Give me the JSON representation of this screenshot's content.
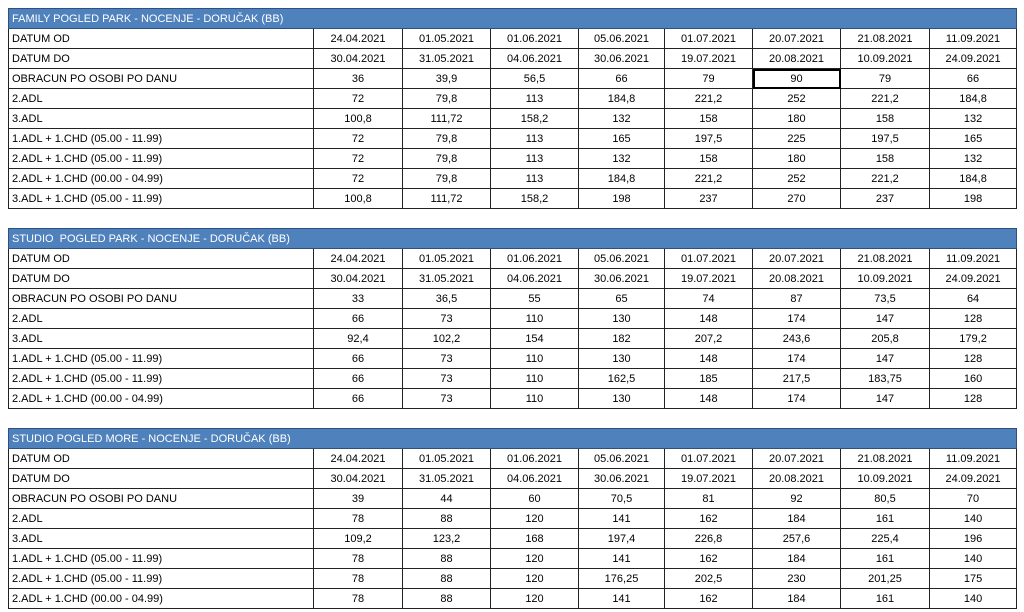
{
  "tables": [
    {
      "title": "FAMILY POGLED PARK - NOCENJE - DORUČAK (BB)",
      "rows": [
        [
          "DATUM OD",
          "24.04.2021",
          "01.05.2021",
          "01.06.2021",
          "05.06.2021",
          "01.07.2021",
          "20.07.2021",
          "21.08.2021",
          "11.09.2021"
        ],
        [
          "DATUM DO",
          "30.04.2021",
          "31.05.2021",
          "04.06.2021",
          "30.06.2021",
          "19.07.2021",
          "20.08.2021",
          "10.09.2021",
          "24.09.2021"
        ],
        [
          "OBRACUN PO OSOBI PO DANU",
          "36",
          "39,9",
          "56,5",
          "66",
          "79",
          "90",
          "79",
          "66"
        ],
        [
          "2.ADL",
          "72",
          "79,8",
          "113",
          "184,8",
          "221,2",
          "252",
          "221,2",
          "184,8"
        ],
        [
          "3.ADL",
          "100,8",
          "111,72",
          "158,2",
          "132",
          "158",
          "180",
          "158",
          "132"
        ],
        [
          "1.ADL + 1.CHD (05.00 - 11.99)",
          "72",
          "79,8",
          "113",
          "165",
          "197,5",
          "225",
          "197,5",
          "165"
        ],
        [
          "2.ADL + 1.CHD (05.00 - 11.99)",
          "72",
          "79,8",
          "113",
          "132",
          "158",
          "180",
          "158",
          "132"
        ],
        [
          "2.ADL + 1.CHD (00.00 - 04.99)",
          "72",
          "79,8",
          "113",
          "184,8",
          "221,2",
          "252",
          "221,2",
          "184,8"
        ],
        [
          "3.ADL + 1.CHD (05.00 - 11.99)",
          "100,8",
          "111,72",
          "158,2",
          "198",
          "237",
          "270",
          "237",
          "198"
        ]
      ]
    },
    {
      "title": "STUDIO  POGLED PARK - NOCENJE - DORUČAK (BB)",
      "rows": [
        [
          "DATUM OD",
          "24.04.2021",
          "01.05.2021",
          "01.06.2021",
          "05.06.2021",
          "01.07.2021",
          "20.07.2021",
          "21.08.2021",
          "11.09.2021"
        ],
        [
          "DATUM DO",
          "30.04.2021",
          "31.05.2021",
          "04.06.2021",
          "30.06.2021",
          "19.07.2021",
          "20.08.2021",
          "10.09.2021",
          "24.09.2021"
        ],
        [
          "OBRACUN PO OSOBI PO DANU",
          "33",
          "36,5",
          "55",
          "65",
          "74",
          "87",
          "73,5",
          "64"
        ],
        [
          "2.ADL",
          "66",
          "73",
          "110",
          "130",
          "148",
          "174",
          "147",
          "128"
        ],
        [
          "3.ADL",
          "92,4",
          "102,2",
          "154",
          "182",
          "207,2",
          "243,6",
          "205,8",
          "179,2"
        ],
        [
          "1.ADL + 1.CHD (05.00 - 11.99)",
          "66",
          "73",
          "110",
          "130",
          "148",
          "174",
          "147",
          "128"
        ],
        [
          "2.ADL + 1.CHD (05.00 - 11.99)",
          "66",
          "73",
          "110",
          "162,5",
          "185",
          "217,5",
          "183,75",
          "160"
        ],
        [
          "2.ADL + 1.CHD (00.00 - 04.99)",
          "66",
          "73",
          "110",
          "130",
          "148",
          "174",
          "147",
          "128"
        ]
      ]
    },
    {
      "title": "STUDIO POGLED MORE - NOCENJE - DORUČAK (BB)",
      "rows": [
        [
          "DATUM OD",
          "24.04.2021",
          "01.05.2021",
          "01.06.2021",
          "05.06.2021",
          "01.07.2021",
          "20.07.2021",
          "21.08.2021",
          "11.09.2021"
        ],
        [
          "DATUM DO",
          "30.04.2021",
          "31.05.2021",
          "04.06.2021",
          "30.06.2021",
          "19.07.2021",
          "20.08.2021",
          "10.09.2021",
          "24.09.2021"
        ],
        [
          "OBRACUN PO OSOBI PO DANU",
          "39",
          "44",
          "60",
          "70,5",
          "81",
          "92",
          "80,5",
          "70"
        ],
        [
          "2.ADL",
          "78",
          "88",
          "120",
          "141",
          "162",
          "184",
          "161",
          "140"
        ],
        [
          "3.ADL",
          "109,2",
          "123,2",
          "168",
          "197,4",
          "226,8",
          "257,6",
          "225,4",
          "196"
        ],
        [
          "1.ADL + 1.CHD (05.00 - 11.99)",
          "78",
          "88",
          "120",
          "141",
          "162",
          "184",
          "161",
          "140"
        ],
        [
          "2.ADL + 1.CHD (05.00 - 11.99)",
          "78",
          "88",
          "120",
          "176,25",
          "202,5",
          "230",
          "201,25",
          "175"
        ],
        [
          "2.ADL + 1.CHD (00.00 - 04.99)",
          "78",
          "88",
          "120",
          "141",
          "162",
          "184",
          "161",
          "140"
        ]
      ]
    }
  ]
}
